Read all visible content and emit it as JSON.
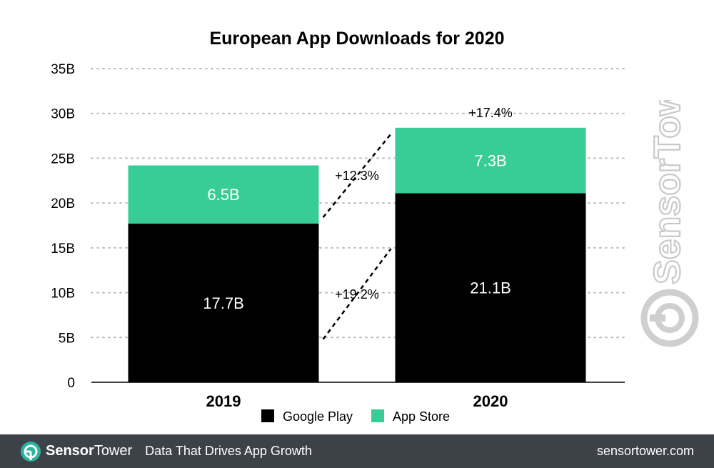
{
  "chart_data": {
    "type": "bar",
    "stacked": true,
    "title": "European App Downloads for 2020",
    "categories": [
      "2019",
      "2020"
    ],
    "series": [
      {
        "name": "Google Play",
        "color": "#000000",
        "values": [
          17.7,
          21.1
        ],
        "labels": [
          "17.7B",
          "21.1B"
        ]
      },
      {
        "name": "App Store",
        "color": "#38cd96",
        "values": [
          6.5,
          7.3
        ],
        "labels": [
          "6.5B",
          "7.3B"
        ]
      }
    ],
    "ylim": [
      0,
      35
    ],
    "yticks": [
      "0",
      "5B",
      "10B",
      "15B",
      "20B",
      "25B",
      "30B",
      "35B"
    ],
    "ytick_values": [
      0,
      5,
      10,
      15,
      20,
      25,
      30,
      35
    ],
    "grid": true,
    "legend_position": "bottom",
    "annotations": {
      "total_growth": "+17.4%",
      "app_store_growth": "+12.3%",
      "google_play_growth": "+19.2%"
    }
  },
  "watermark": {
    "text": "SensorTower",
    "icon": "sensortower-logo-icon"
  },
  "footer": {
    "brand_part1": "Sensor",
    "brand_part2": "Tower",
    "tagline": "Data That Drives App Growth",
    "url": "sensortower.com"
  }
}
